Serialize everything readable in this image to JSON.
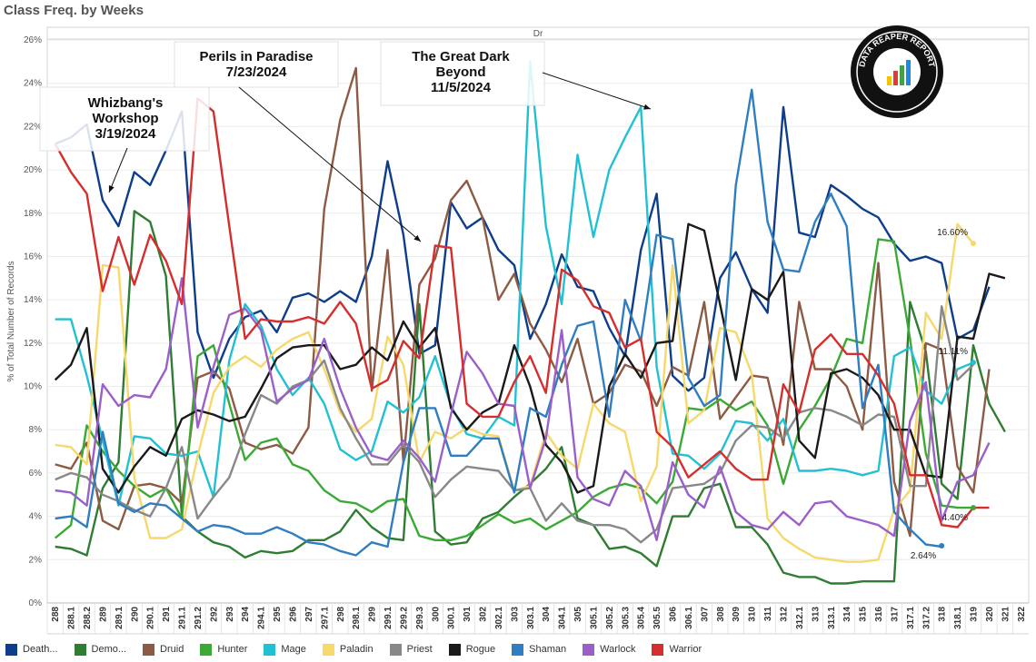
{
  "title": "Class Freq. by Weeks",
  "chart_data": {
    "type": "line",
    "column_header": "Dr",
    "ylabel": "% of Total Number of Records",
    "ylim": [
      0,
      26
    ],
    "yticks": [
      "0%",
      "2%",
      "4%",
      "6%",
      "8%",
      "10%",
      "12%",
      "14%",
      "16%",
      "18%",
      "20%",
      "22%",
      "24%",
      "26%"
    ],
    "grid": true,
    "legend_position": "bottom",
    "categories": [
      "288",
      "288.1",
      "288.2",
      "289",
      "289.1",
      "290",
      "290.1",
      "291",
      "291.1",
      "291.2",
      "292",
      "293",
      "294",
      "294.1",
      "295",
      "296",
      "297",
      "297.1",
      "298",
      "298.1",
      "299",
      "299.1",
      "299.2",
      "299.3",
      "300",
      "300.1",
      "301",
      "302",
      "302.1",
      "303",
      "303.1",
      "304",
      "304.1",
      "305",
      "305.1",
      "305.2",
      "305.3",
      "305.4",
      "305.5",
      "306",
      "306.1",
      "307",
      "308",
      "309",
      "310",
      "311",
      "312",
      "312.1",
      "313",
      "313.1",
      "314",
      "315",
      "316",
      "317",
      "317.1",
      "317.2",
      "318",
      "318.1",
      "319",
      "320",
      "321",
      "322"
    ],
    "series": [
      {
        "name": "Death...",
        "color": "#0e3d8c",
        "values": [
          21.2,
          21.5,
          22.1,
          18.6,
          17.4,
          19.9,
          19.3,
          20.9,
          22.7,
          12.5,
          10.4,
          12.2,
          13.2,
          13.5,
          12.5,
          14.1,
          14.3,
          13.9,
          14.4,
          13.9,
          16.0,
          20.4,
          17.0,
          11.5,
          11.9,
          18.5,
          17.3,
          17.8,
          16.3,
          15.6,
          12.2,
          13.8,
          16.1,
          14.6,
          14.4,
          12.7,
          11.4,
          16.3,
          18.9,
          10.5,
          9.8,
          10.4,
          15.0,
          16.2,
          14.5,
          13.4,
          22.9,
          17.1,
          16.9,
          19.3,
          18.8,
          18.2,
          17.8,
          16.6,
          15.8,
          16.0,
          15.7,
          12.2,
          12.6,
          14.6,
          0,
          0
        ]
      },
      {
        "name": "Demo...",
        "color": "#2e7d32",
        "values": [
          2.6,
          2.5,
          2.2,
          5.3,
          6.5,
          18.1,
          17.6,
          15.1,
          4.0,
          3.3,
          2.8,
          2.6,
          2.1,
          2.4,
          2.3,
          2.4,
          2.9,
          2.9,
          3.3,
          4.3,
          3.5,
          3.0,
          2.9,
          13.8,
          3.3,
          2.7,
          2.8,
          3.9,
          4.2,
          4.9,
          5.5,
          6.2,
          7.2,
          3.9,
          3.6,
          2.5,
          2.6,
          2.3,
          1.7,
          4.0,
          4.0,
          5.3,
          5.5,
          3.5,
          3.5,
          2.7,
          1.4,
          1.2,
          1.2,
          0.9,
          0.9,
          1.0,
          1.0,
          1.0,
          13.9,
          11.6,
          5.5,
          4.8,
          11.9,
          9.2,
          7.9,
          0
        ]
      },
      {
        "name": "Druid",
        "color": "#8d5a44",
        "values": [
          6.4,
          6.2,
          7.4,
          3.8,
          3.4,
          5.4,
          5.5,
          5.3,
          4.6,
          10.4,
          10.7,
          9.9,
          7.4,
          7.1,
          7.3,
          6.9,
          8.1,
          18.2,
          22.3,
          24.7,
          9.8,
          16.3,
          6.5,
          14.7,
          15.9,
          18.6,
          19.5,
          17.8,
          14.0,
          15.2,
          12.9,
          11.7,
          10.2,
          12.2,
          9.2,
          9.7,
          11.0,
          10.7,
          9.1,
          10.9,
          10.5,
          13.9,
          8.5,
          9.5,
          10.5,
          10.4,
          7.3,
          13.9,
          10.8,
          10.8,
          10.0,
          8.0,
          15.7,
          5.6,
          3.1,
          12.0,
          11.7,
          6.3,
          5.1,
          10.8,
          0,
          0
        ]
      },
      {
        "name": "Hunter",
        "color": "#3aaa35",
        "values": [
          3.0,
          3.6,
          8.2,
          7.0,
          6.1,
          5.4,
          4.9,
          5.3,
          3.9,
          11.4,
          11.9,
          9.2,
          6.6,
          7.4,
          7.6,
          6.4,
          6.1,
          5.2,
          4.7,
          4.6,
          4.2,
          4.7,
          4.8,
          3.1,
          2.9,
          2.9,
          3.1,
          3.6,
          4.1,
          3.7,
          3.9,
          3.4,
          3.8,
          4.2,
          4.9,
          5.3,
          5.5,
          5.3,
          4.6,
          5.6,
          9.0,
          8.9,
          9.4,
          8.9,
          9.3,
          8.2,
          5.5,
          8.0,
          9.1,
          10.4,
          12.2,
          12.0,
          16.8,
          16.7,
          12.2,
          6.9,
          4.5,
          4.4,
          4.4,
          0,
          0,
          0
        ]
      },
      {
        "name": "Mage",
        "color": "#21c1d3",
        "values": [
          13.1,
          13.1,
          10.5,
          7.5,
          4.5,
          7.7,
          7.6,
          6.9,
          6.8,
          7.0,
          4.9,
          11.2,
          13.8,
          12.8,
          10.8,
          9.6,
          10.4,
          9.2,
          7.1,
          6.6,
          7.0,
          9.3,
          8.8,
          9.5,
          11.4,
          9.1,
          7.8,
          7.6,
          8.6,
          8.2,
          25.0,
          17.4,
          13.8,
          20.7,
          16.9,
          20.0,
          21.5,
          22.9,
          10.9,
          6.9,
          6.8,
          6.2,
          6.9,
          8.4,
          8.3,
          7.5,
          8.5,
          6.1,
          6.1,
          6.2,
          6.1,
          5.9,
          6.1,
          11.4,
          11.8,
          9.8,
          9.2,
          10.8,
          11.1,
          0,
          0,
          0
        ]
      },
      {
        "name": "Paladin",
        "color": "#f7d86b",
        "values": [
          7.3,
          7.2,
          6.4,
          15.6,
          15.5,
          5.8,
          3.0,
          3.0,
          3.4,
          6.8,
          9.7,
          10.9,
          11.4,
          10.9,
          11.7,
          12.2,
          12.5,
          10.8,
          8.8,
          7.9,
          8.5,
          12.3,
          11.0,
          6.5,
          7.9,
          7.6,
          8.1,
          7.8,
          7.7,
          5.2,
          5.4,
          7.9,
          6.8,
          6.2,
          9.2,
          8.3,
          7.9,
          4.7,
          6.3,
          15.6,
          8.3,
          8.9,
          12.7,
          12.5,
          10.6,
          3.9,
          3.0,
          2.5,
          2.1,
          2.0,
          1.9,
          1.9,
          2.0,
          4.3,
          5.2,
          13.4,
          12.2,
          17.5,
          16.6,
          0,
          0,
          0
        ]
      },
      {
        "name": "Priest",
        "color": "#888888",
        "values": [
          5.7,
          6.0,
          5.8,
          5.0,
          4.7,
          4.3,
          4.0,
          5.3,
          7.2,
          3.9,
          4.9,
          5.8,
          7.8,
          9.6,
          9.2,
          10.0,
          10.3,
          11.2,
          9.0,
          7.6,
          6.4,
          6.4,
          7.3,
          6.5,
          4.9,
          5.7,
          6.3,
          6.2,
          6.1,
          5.2,
          5.3,
          3.8,
          4.6,
          3.8,
          3.6,
          3.6,
          3.4,
          2.8,
          3.4,
          5.3,
          5.4,
          5.5,
          6.0,
          7.5,
          8.2,
          8.1,
          7.6,
          8.8,
          9.0,
          8.9,
          8.6,
          8.2,
          8.7,
          8.6,
          5.4,
          5.4,
          13.7,
          10.3,
          11.0,
          0,
          0,
          0
        ]
      },
      {
        "name": "Rogue",
        "color": "#1a1a1a",
        "values": [
          10.3,
          11.0,
          12.7,
          6.2,
          5.1,
          6.3,
          7.2,
          6.8,
          8.5,
          8.9,
          8.7,
          8.4,
          8.6,
          9.9,
          11.3,
          11.8,
          11.9,
          11.9,
          10.8,
          11.0,
          11.8,
          11.2,
          13.0,
          11.8,
          12.7,
          9.0,
          8.0,
          8.8,
          9.2,
          11.9,
          10.0,
          7.3,
          6.5,
          5.1,
          5.4,
          10.0,
          11.5,
          10.4,
          12.0,
          12.1,
          17.5,
          17.2,
          13.8,
          10.3,
          14.5,
          14.0,
          15.3,
          7.5,
          6.7,
          10.6,
          10.8,
          10.4,
          9.6,
          8.0,
          8.0,
          5.9,
          5.8,
          12.3,
          12.2,
          15.2,
          15.0,
          0
        ]
      },
      {
        "name": "Shaman",
        "color": "#2f7ec1",
        "values": [
          3.9,
          4.0,
          3.5,
          7.9,
          4.6,
          4.2,
          4.6,
          4.5,
          3.9,
          3.3,
          3.6,
          3.5,
          3.2,
          3.2,
          3.5,
          3.2,
          2.8,
          2.7,
          2.4,
          2.2,
          2.8,
          2.6,
          6.5,
          9.0,
          9.0,
          6.8,
          6.8,
          7.6,
          7.6,
          5.1,
          9.0,
          8.6,
          11.0,
          12.8,
          13.0,
          8.6,
          14.0,
          12.1,
          17.0,
          16.8,
          10.4,
          9.1,
          9.6,
          19.3,
          23.7,
          17.6,
          15.4,
          15.3,
          17.6,
          18.9,
          17.4,
          9.0,
          11.0,
          4.2,
          3.4,
          2.7,
          2.6,
          0,
          0,
          0,
          0,
          0
        ]
      },
      {
        "name": "Warlock",
        "color": "#9b5fc9",
        "values": [
          5.2,
          5.1,
          4.5,
          10.1,
          9.1,
          9.6,
          9.5,
          10.8,
          15.0,
          8.1,
          10.9,
          13.3,
          13.6,
          12.6,
          9.3,
          9.9,
          10.3,
          12.2,
          9.9,
          8.1,
          6.8,
          6.6,
          7.5,
          6.7,
          5.6,
          8.7,
          11.6,
          10.6,
          9.2,
          9.1,
          5.3,
          7.6,
          12.6,
          5.8,
          4.8,
          4.5,
          6.1,
          5.4,
          2.9,
          6.5,
          5.0,
          4.4,
          6.3,
          4.2,
          3.6,
          3.4,
          4.2,
          3.6,
          4.6,
          4.7,
          4.0,
          3.8,
          3.6,
          3.1,
          8.4,
          10.2,
          3.8,
          5.6,
          5.9,
          7.4,
          0,
          0
        ]
      },
      {
        "name": "Warrior",
        "color": "#d62d2d",
        "values": [
          21.2,
          19.9,
          18.9,
          14.4,
          16.9,
          14.7,
          17.0,
          15.8,
          13.8,
          23.3,
          22.7,
          17.4,
          12.2,
          13.1,
          13.0,
          13.0,
          13.2,
          12.9,
          13.9,
          12.9,
          9.9,
          10.3,
          12.1,
          11.3,
          16.5,
          16.4,
          9.2,
          8.6,
          8.6,
          10.2,
          11.4,
          9.7,
          15.4,
          14.9,
          13.7,
          13.4,
          11.8,
          12.2,
          7.9,
          7.2,
          5.8,
          6.4,
          7.0,
          6.2,
          5.7,
          5.7,
          10.1,
          8.8,
          11.7,
          12.4,
          11.5,
          11.5,
          10.5,
          9.2,
          5.9,
          5.9,
          3.6,
          3.5,
          4.4,
          4.4,
          0,
          0
        ]
      }
    ],
    "end_labels": [
      {
        "text": "16.60%",
        "series": "Paladin",
        "value": 16.6
      },
      {
        "text": "11.11%",
        "series": "Mage",
        "value": 11.11
      },
      {
        "text": "4.40%",
        "series": "Hunter",
        "value": 4.4
      },
      {
        "text": "2.64%",
        "series": "Shaman",
        "value": 2.64
      }
    ],
    "annotations": [
      {
        "lines": [
          "Whizbang's",
          "Workshop",
          "3/19/2024"
        ]
      },
      {
        "lines": [
          "Perils in Paradise",
          "7/23/2024"
        ]
      },
      {
        "lines": [
          "The Great Dark",
          "Beyond",
          "11/5/2024"
        ]
      }
    ]
  },
  "logo": {
    "text": "DATA REAPER REPORT"
  }
}
